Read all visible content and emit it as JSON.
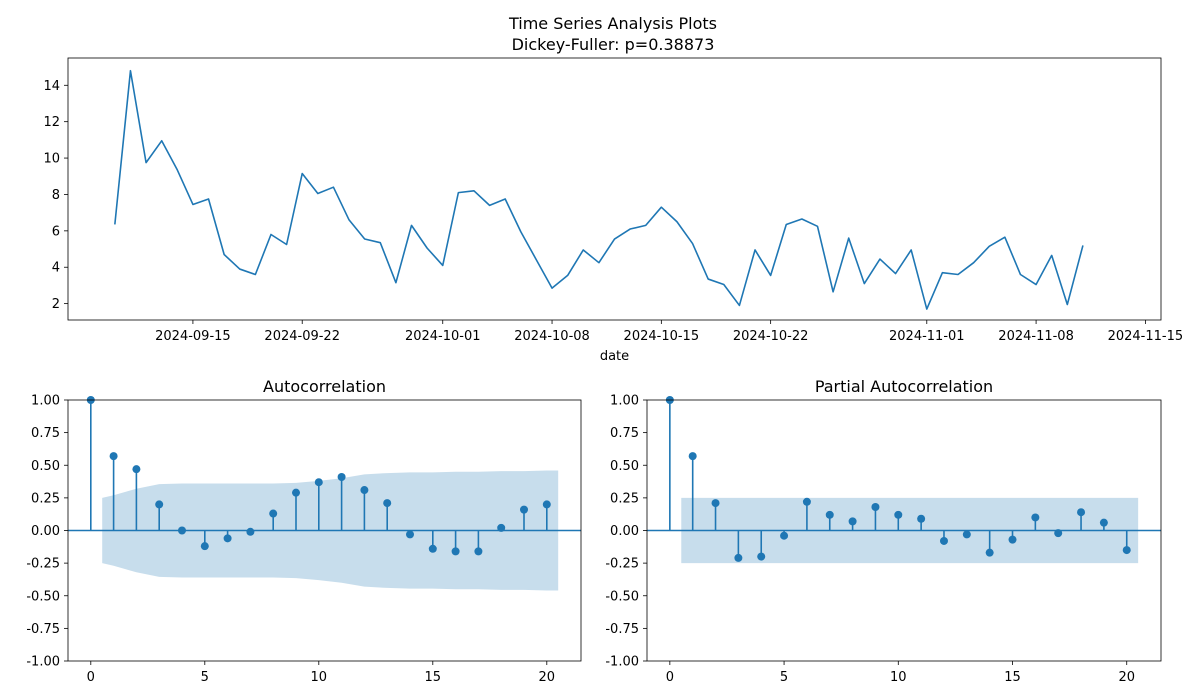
{
  "figure": {
    "suptitle_line1": "Time Series Analysis Plots",
    "suptitle_line2": "Dickey-Fuller: p=0.38873"
  },
  "colors": {
    "series": "#1f77b4",
    "band": "#1f77b4",
    "axis": "#000000"
  },
  "chart_data": [
    {
      "type": "line",
      "title": "",
      "xlabel": "date",
      "ylabel": "",
      "start_date": "2024-09-10",
      "x_tick_labels": [
        "2024-09-15",
        "2024-09-22",
        "2024-10-01",
        "2024-10-08",
        "2024-10-15",
        "2024-10-22",
        "2024-11-01",
        "2024-11-08",
        "2024-11-15"
      ],
      "y_ticks": [
        2,
        4,
        6,
        8,
        10,
        12,
        14
      ],
      "xlim": [
        "2024-09-07",
        "2024-11-16"
      ],
      "ylim": [
        1.1,
        15.5
      ],
      "grid": false,
      "values": [
        6.35,
        14.8,
        9.75,
        10.95,
        9.35,
        7.45,
        7.75,
        4.7,
        3.9,
        3.6,
        5.8,
        5.25,
        9.15,
        8.05,
        8.4,
        6.6,
        5.55,
        5.35,
        3.15,
        6.3,
        5.05,
        4.1,
        8.1,
        8.2,
        7.4,
        7.75,
        5.95,
        4.4,
        2.85,
        3.55,
        4.95,
        4.25,
        5.55,
        6.1,
        6.3,
        7.3,
        6.5,
        5.3,
        3.35,
        3.05,
        1.9,
        4.95,
        3.55,
        6.35,
        6.65,
        6.25,
        2.65,
        5.6,
        3.1,
        4.45,
        3.65,
        4.95,
        1.7,
        3.7,
        3.6,
        4.25,
        5.15,
        5.65,
        3.6,
        3.05,
        4.65,
        1.95,
        5.2
      ]
    },
    {
      "type": "stem",
      "title": "Autocorrelation",
      "xlabel": "",
      "ylabel": "",
      "lags": [
        0,
        1,
        2,
        3,
        4,
        5,
        6,
        7,
        8,
        9,
        10,
        11,
        12,
        13,
        14,
        15,
        16,
        17,
        18,
        19,
        20
      ],
      "values": [
        1.0,
        0.57,
        0.47,
        0.2,
        0.0,
        -0.12,
        -0.06,
        -0.01,
        0.13,
        0.29,
        0.37,
        0.41,
        0.31,
        0.21,
        -0.03,
        -0.14,
        -0.16,
        -0.16,
        0.02,
        0.16,
        0.2
      ],
      "confidence_band": {
        "lags": [
          0.5,
          1,
          2,
          3,
          4,
          5,
          6,
          7,
          8,
          9,
          10,
          11,
          12,
          13,
          14,
          15,
          16,
          17,
          18,
          19,
          20,
          20.5
        ],
        "upper": [
          0.25,
          0.27,
          0.32,
          0.355,
          0.36,
          0.36,
          0.36,
          0.36,
          0.36,
          0.365,
          0.38,
          0.4,
          0.43,
          0.44,
          0.445,
          0.445,
          0.45,
          0.45,
          0.455,
          0.455,
          0.46,
          0.46
        ]
      },
      "x_ticks": [
        0,
        5,
        10,
        15,
        20
      ],
      "y_ticks": [
        -1.0,
        -0.75,
        -0.5,
        -0.25,
        0.0,
        0.25,
        0.5,
        0.75,
        1.0
      ],
      "xlim": [
        -1,
        21.5
      ],
      "ylim": [
        -1.0,
        1.0
      ],
      "grid": false
    },
    {
      "type": "stem",
      "title": "Partial Autocorrelation",
      "xlabel": "",
      "ylabel": "",
      "lags": [
        0,
        1,
        2,
        3,
        4,
        5,
        6,
        7,
        8,
        9,
        10,
        11,
        12,
        13,
        14,
        15,
        16,
        17,
        18,
        19,
        20
      ],
      "values": [
        1.0,
        0.57,
        0.21,
        -0.21,
        -0.2,
        -0.04,
        0.22,
        0.12,
        0.07,
        0.18,
        0.12,
        0.09,
        -0.08,
        -0.03,
        -0.17,
        -0.07,
        0.1,
        -0.02,
        0.14,
        0.06,
        -0.15
      ],
      "confidence_band": {
        "lags": [
          0.5,
          20.5
        ],
        "upper": [
          0.25,
          0.25
        ]
      },
      "x_ticks": [
        0,
        5,
        10,
        15,
        20
      ],
      "y_ticks": [
        -1.0,
        -0.75,
        -0.5,
        -0.25,
        0.0,
        0.25,
        0.5,
        0.75,
        1.0
      ],
      "xlim": [
        -1,
        21.5
      ],
      "ylim": [
        -1.0,
        1.0
      ],
      "grid": false
    }
  ]
}
